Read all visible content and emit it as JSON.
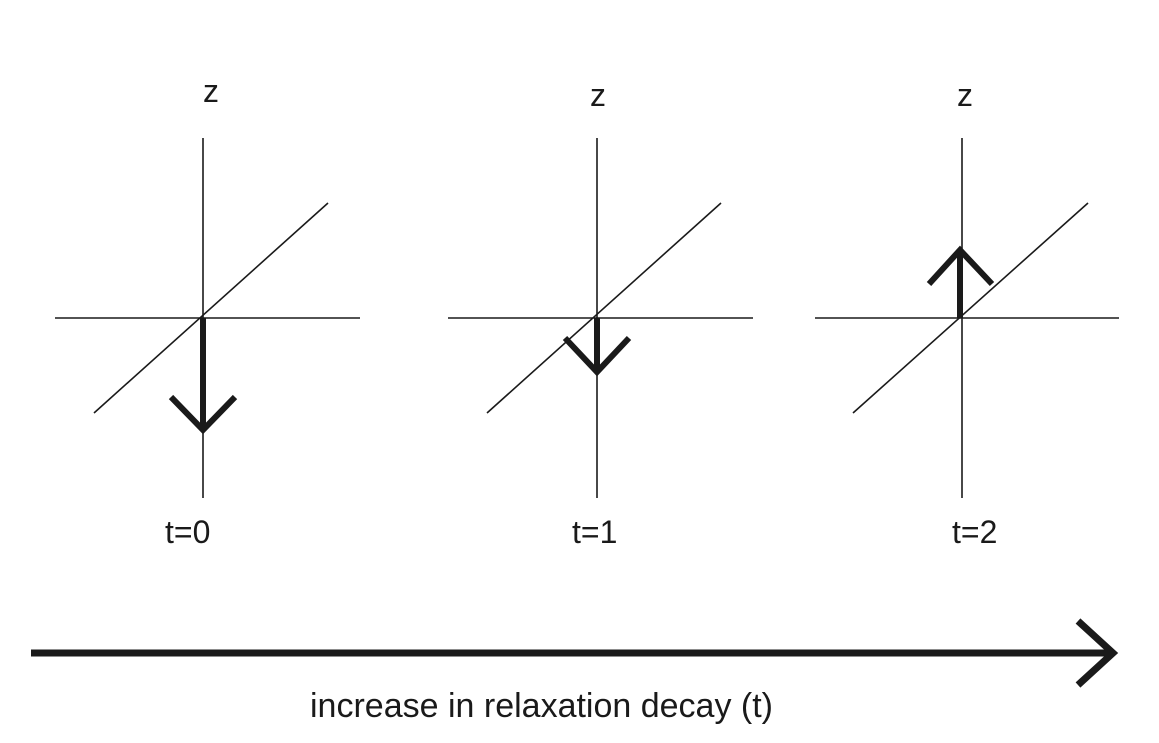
{
  "panels": [
    {
      "axis_label": "z",
      "time_label": "t=0",
      "vector_direction": "down",
      "vector_magnitude": 1.0
    },
    {
      "axis_label": "z",
      "time_label": "t=1",
      "vector_direction": "down",
      "vector_magnitude": 0.5
    },
    {
      "axis_label": "z",
      "time_label": "t=2",
      "vector_direction": "up",
      "vector_magnitude": 0.6
    }
  ],
  "time_axis": {
    "caption": "increase in relaxation decay (t)"
  }
}
